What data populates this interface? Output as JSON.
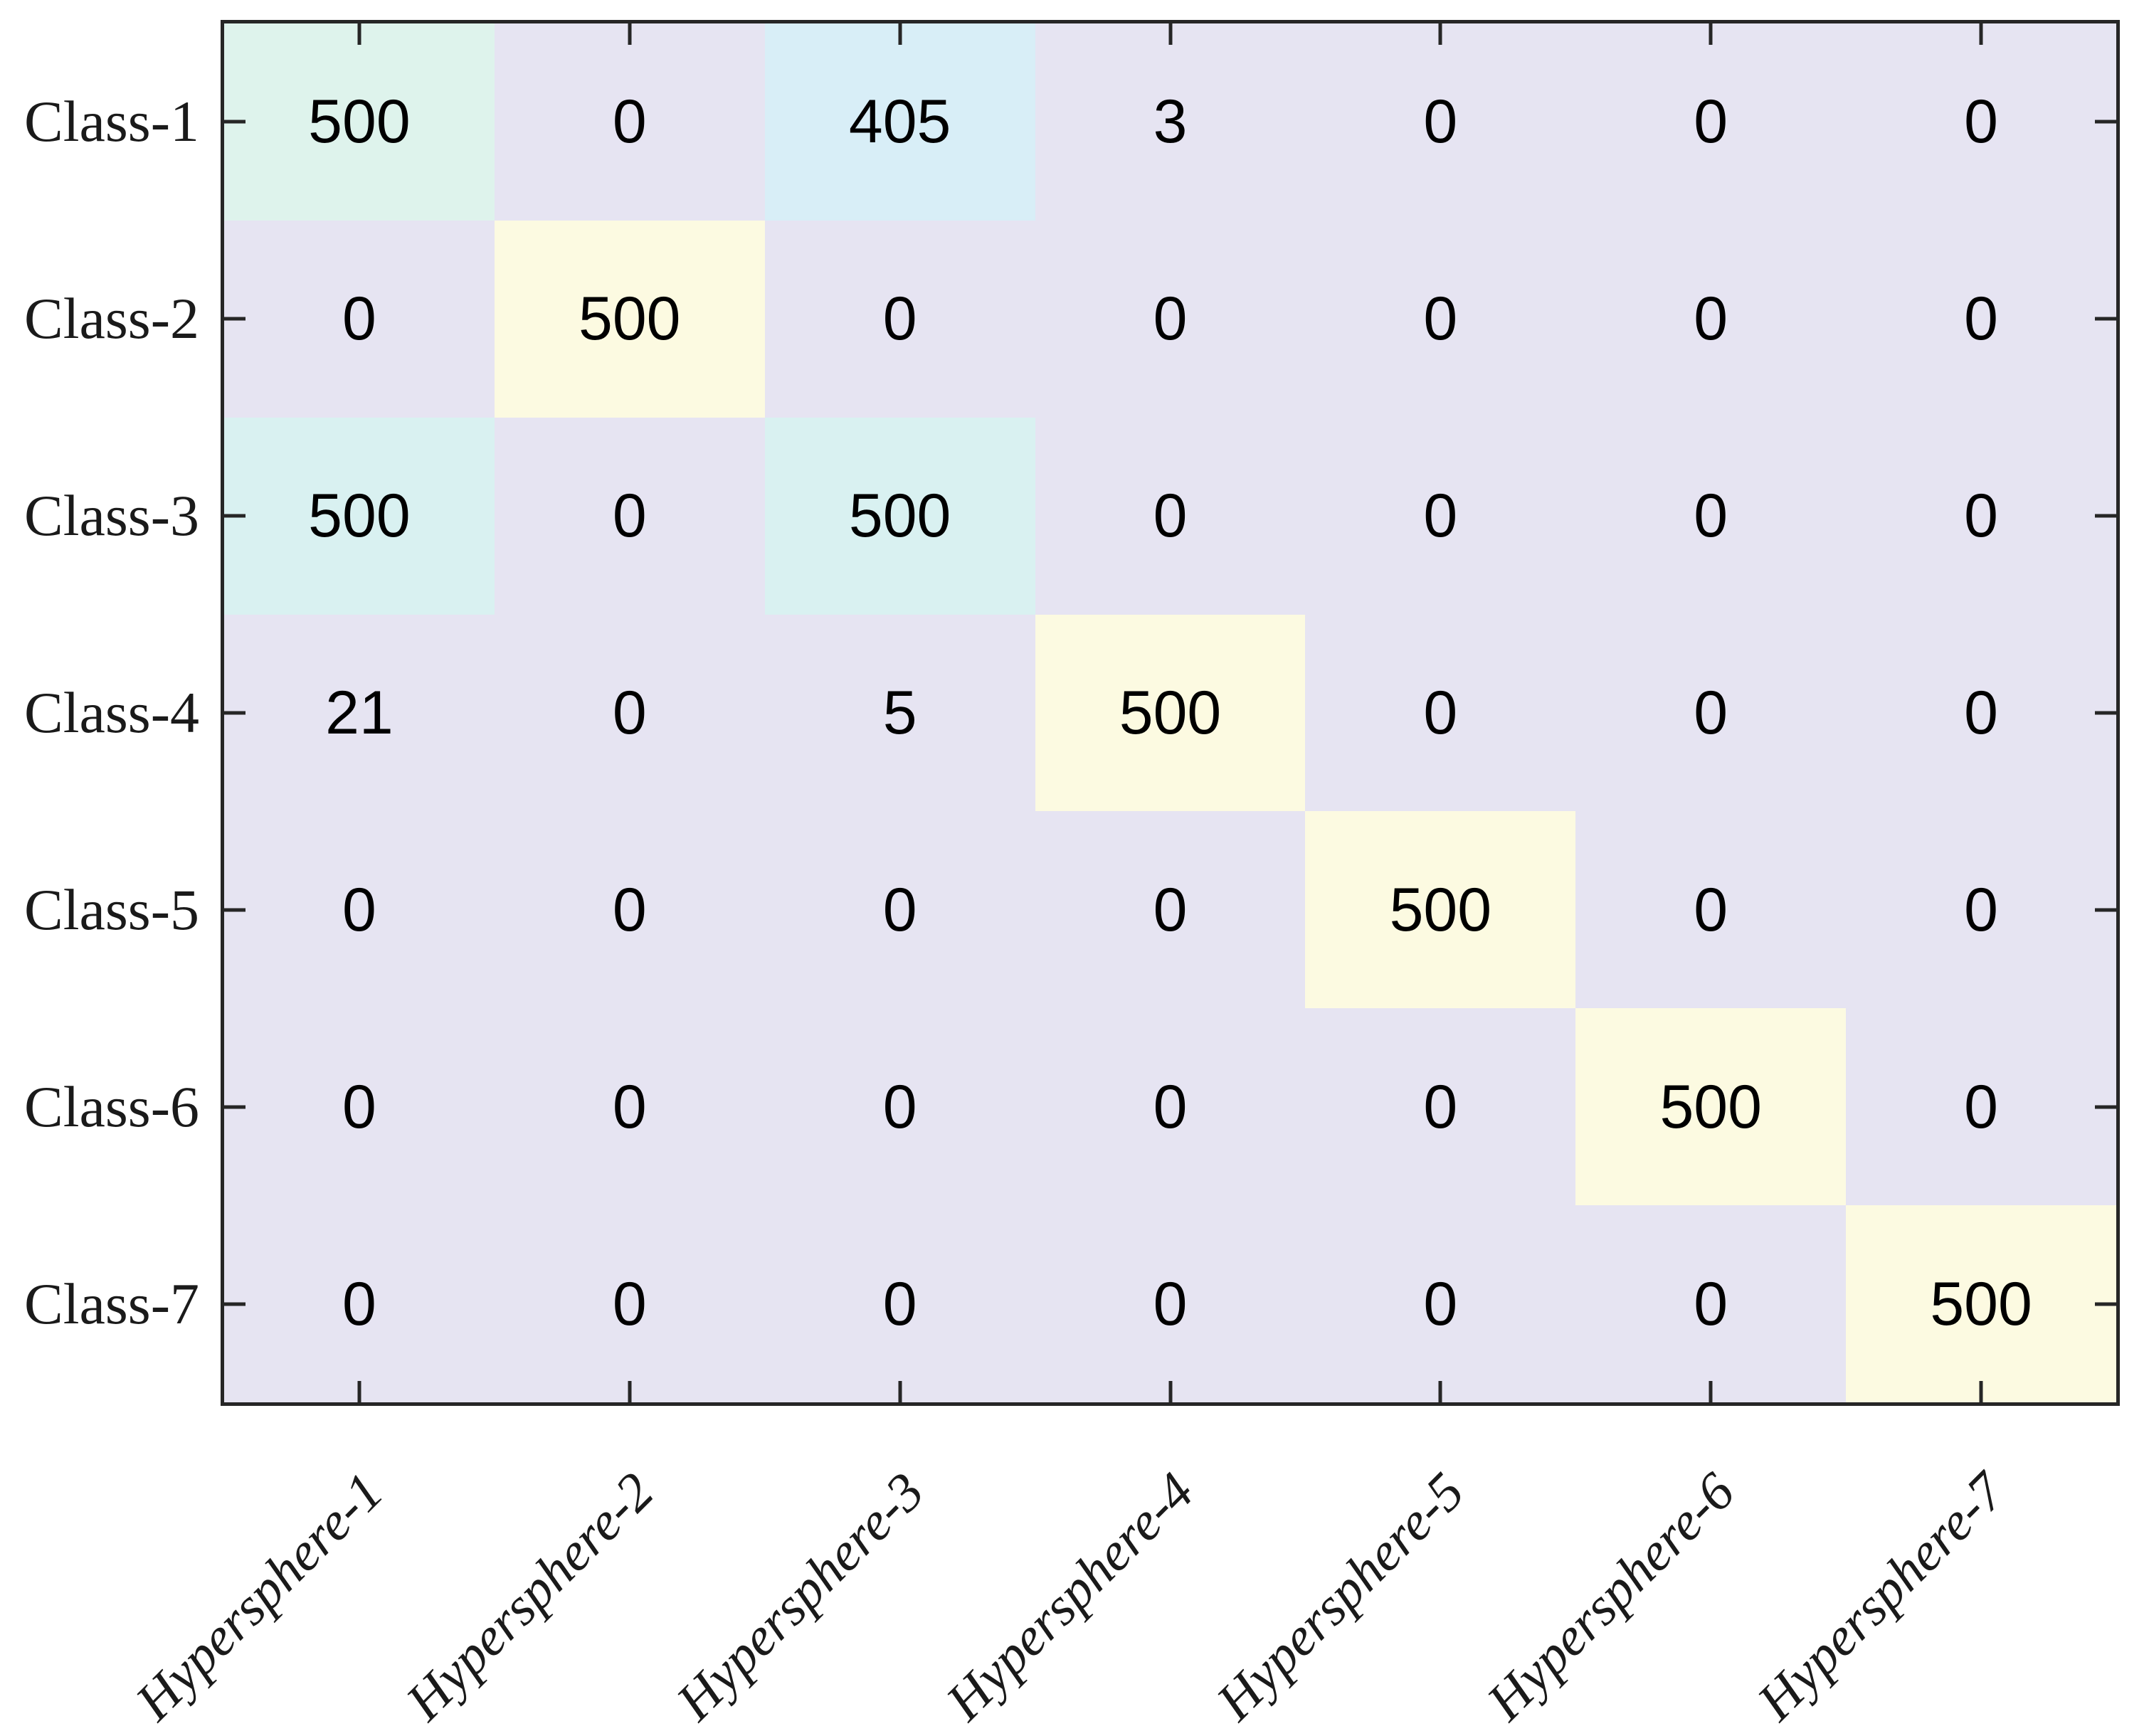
{
  "chart_data": {
    "type": "heatmap",
    "title": "",
    "xlabel": "",
    "ylabel": "",
    "rows": [
      "Class-1",
      "Class-2",
      "Class-3",
      "Class-4",
      "Class-5",
      "Class-6",
      "Class-7"
    ],
    "columns": [
      "Hypersphere-1",
      "Hypersphere-2",
      "Hypersphere-3",
      "Hypersphere-4",
      "Hypersphere-5",
      "Hypersphere-6",
      "Hypersphere-7"
    ],
    "values": [
      [
        500,
        0,
        405,
        3,
        0,
        0,
        0
      ],
      [
        0,
        500,
        0,
        0,
        0,
        0,
        0
      ],
      [
        500,
        0,
        500,
        0,
        0,
        0,
        0
      ],
      [
        21,
        0,
        5,
        500,
        0,
        0,
        0
      ],
      [
        0,
        0,
        0,
        0,
        500,
        0,
        0
      ],
      [
        0,
        0,
        0,
        0,
        0,
        500,
        0
      ],
      [
        0,
        0,
        0,
        0,
        0,
        0,
        500
      ]
    ],
    "cell_color_keys": [
      [
        "mint",
        "lavender",
        "blue_cyan",
        "lavender",
        "lavender",
        "lavender",
        "lavender"
      ],
      [
        "lavender",
        "cream",
        "lavender",
        "lavender",
        "lavender",
        "lavender",
        "lavender"
      ],
      [
        "cyan",
        "lavender",
        "cyan",
        "lavender",
        "lavender",
        "lavender",
        "lavender"
      ],
      [
        "lavender",
        "lavender",
        "lavender",
        "cream",
        "lavender",
        "lavender",
        "lavender"
      ],
      [
        "lavender",
        "lavender",
        "lavender",
        "lavender",
        "cream",
        "lavender",
        "lavender"
      ],
      [
        "lavender",
        "lavender",
        "lavender",
        "lavender",
        "lavender",
        "cream",
        "lavender"
      ],
      [
        "lavender",
        "lavender",
        "lavender",
        "lavender",
        "lavender",
        "lavender",
        "cream"
      ]
    ],
    "colors": {
      "figure_background": "#ffffff",
      "lavender": "#e6e4f2",
      "cream": "#fcfae1",
      "mint": "#def3ec",
      "cyan": "#d9f1f1",
      "blue_cyan": "#d8eef7",
      "axis_line": "#262626",
      "text": "#000000"
    },
    "layout_hints": {
      "box": true,
      "ticks": "inward on all four sides at row/column centers",
      "x_tick_label_rotation_deg": 45,
      "legend": "none",
      "grid": false
    }
  }
}
